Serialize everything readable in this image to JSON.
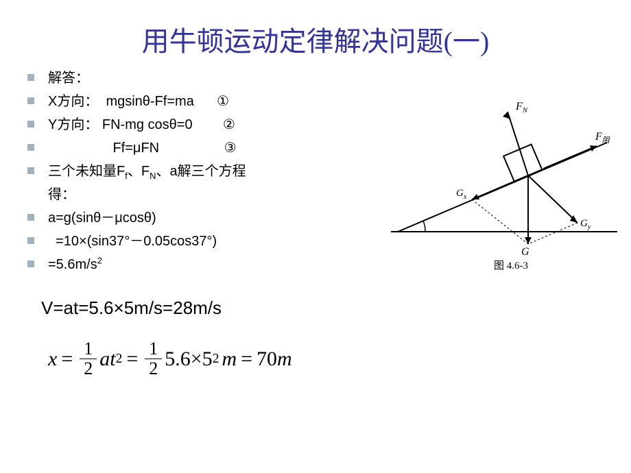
{
  "title": "用牛顿运动定律解决问题(一)",
  "bullets": [
    {
      "text": "解答：",
      "html": null
    },
    {
      "text": "X方向：  mgsinθ-Ff=ma      ①",
      "html": null
    },
    {
      "text": "Y方向： FN-mg cosθ=0        ②",
      "html": null
    },
    {
      "text": "                 Ff=μFN                 ③",
      "html": null
    },
    {
      "text": null,
      "html": "三个未知量F<sub>f</sub>、F<sub>N</sub>、a解三个方程<br>得："
    },
    {
      "text": "a=g(sinθ－μcosθ)",
      "html": null
    },
    {
      "text": "  =10×(sin37°－0.05cos37°)",
      "html": null
    },
    {
      "text": null,
      "html": "  =5.6m/s<sup>2</sup>"
    }
  ],
  "velocity_line": "V=at=5.6×5m/s=28m/s",
  "equation": {
    "x": "x",
    "eq": "=",
    "f1_num": "1",
    "f1_den": "2",
    "at2": "at",
    "exp1": "2",
    "eq2": "=",
    "f2_num": "1",
    "f2_den": "2",
    "mid": "5.6×5",
    "exp2": "2",
    "m1": "m",
    "eq3": "=",
    "res": "70",
    "m2": "m"
  },
  "diagram": {
    "labels": {
      "fn": "F",
      "fn_sub": "N",
      "ff": "F",
      "ff_sub": "阻",
      "gx": "G",
      "gx_sub": "x",
      "gy": "G",
      "gy_sub": "y",
      "g": "G",
      "caption": "图   4.6-3"
    },
    "colors": {
      "stroke": "#000000",
      "bg": "#ffffff"
    }
  },
  "colors": {
    "title": "#3333a0",
    "bullet": "#9fb2bd",
    "text": "#000000",
    "background": "#ffffff"
  }
}
